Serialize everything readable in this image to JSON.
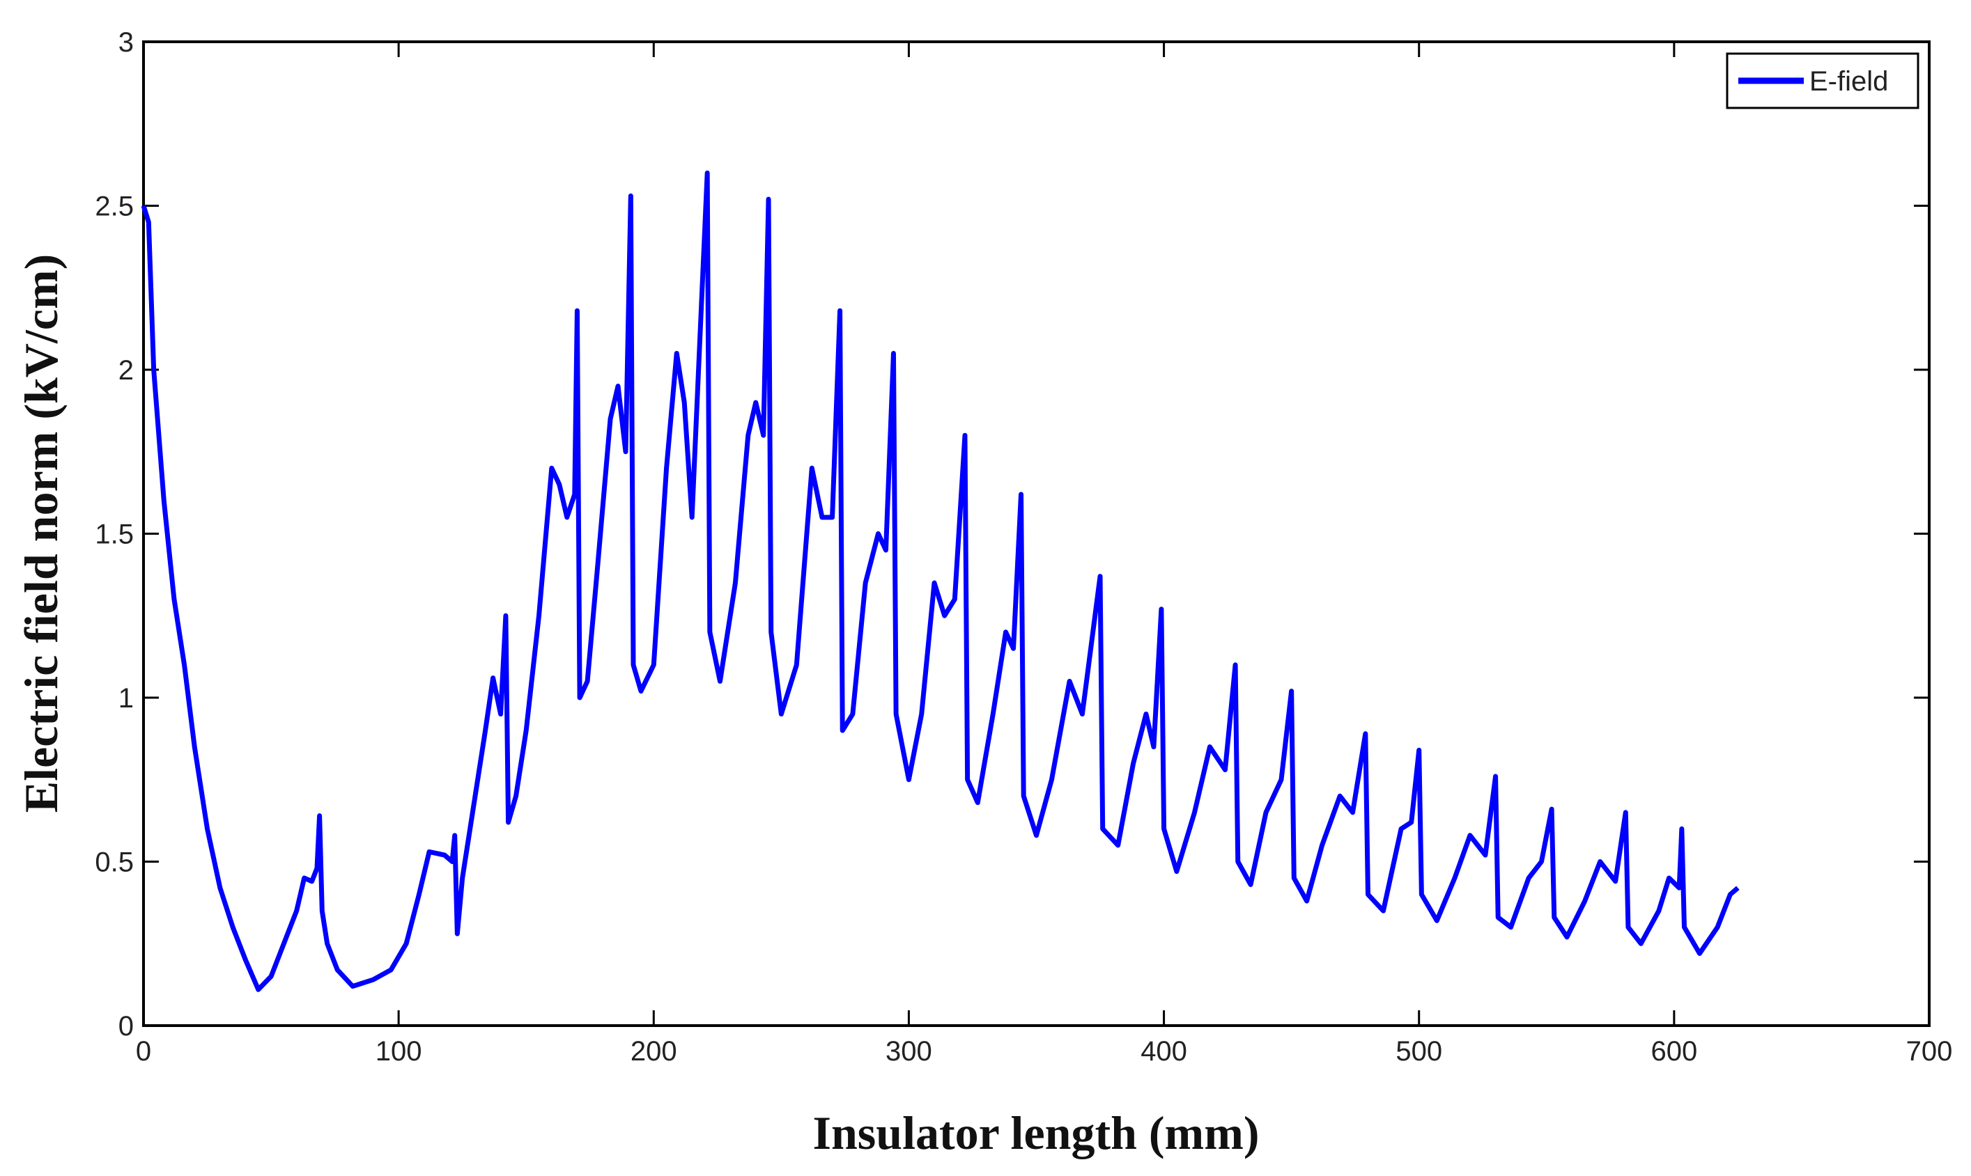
{
  "chart_data": {
    "type": "line",
    "xlabel": "Insulator length (mm)",
    "ylabel": "Electric field norm (kV/cm)",
    "x": [
      0,
      2,
      4,
      6,
      8,
      12,
      16,
      20,
      25,
      30,
      35,
      40,
      45,
      50,
      55,
      60,
      63,
      66,
      68,
      69,
      70,
      72,
      76,
      82,
      90,
      97,
      103,
      108,
      112,
      118,
      121,
      122,
      123,
      125,
      130,
      134,
      137,
      140,
      142,
      143,
      146,
      150,
      155,
      160,
      163,
      166,
      169,
      170,
      171,
      174,
      178,
      183,
      186,
      189,
      191,
      192,
      195,
      200,
      205,
      209,
      212,
      215,
      221,
      222,
      226,
      232,
      237,
      240,
      243,
      245,
      246,
      250,
      256,
      262,
      266,
      270,
      273,
      274,
      278,
      283,
      288,
      291,
      294,
      295,
      300,
      305,
      310,
      314,
      318,
      322,
      323,
      327,
      333,
      338,
      341,
      344,
      345,
      350,
      356,
      363,
      368,
      375,
      376,
      382,
      388,
      393,
      396,
      399,
      400,
      405,
      412,
      418,
      424,
      428,
      429,
      434,
      440,
      446,
      450,
      451,
      456,
      462,
      469,
      474,
      479,
      480,
      486,
      493,
      497,
      500,
      501,
      507,
      514,
      520,
      526,
      530,
      531,
      536,
      543,
      548,
      552,
      553,
      558,
      565,
      571,
      577,
      581,
      582,
      587,
      594,
      598,
      602,
      603,
      604,
      610,
      617,
      622,
      625
    ],
    "series": [
      {
        "name": "E-field",
        "color": "#0000ff",
        "values": [
          2.5,
          2.45,
          2.0,
          1.8,
          1.6,
          1.3,
          1.1,
          0.85,
          0.6,
          0.42,
          0.3,
          0.2,
          0.11,
          0.15,
          0.25,
          0.35,
          0.45,
          0.44,
          0.48,
          0.64,
          0.35,
          0.25,
          0.17,
          0.12,
          0.14,
          0.17,
          0.25,
          0.4,
          0.53,
          0.52,
          0.5,
          0.58,
          0.28,
          0.45,
          0.7,
          0.9,
          1.06,
          0.95,
          1.25,
          0.62,
          0.7,
          0.9,
          1.25,
          1.7,
          1.65,
          1.55,
          1.62,
          2.18,
          1.0,
          1.05,
          1.4,
          1.85,
          1.95,
          1.75,
          2.53,
          1.1,
          1.02,
          1.1,
          1.7,
          2.05,
          1.9,
          1.55,
          2.6,
          1.2,
          1.05,
          1.35,
          1.8,
          1.9,
          1.8,
          2.52,
          1.2,
          0.95,
          1.1,
          1.7,
          1.55,
          1.55,
          2.18,
          0.9,
          0.95,
          1.35,
          1.5,
          1.45,
          2.05,
          0.95,
          0.75,
          0.95,
          1.35,
          1.25,
          1.3,
          1.8,
          0.75,
          0.68,
          0.95,
          1.2,
          1.15,
          1.62,
          0.7,
          0.58,
          0.75,
          1.05,
          0.95,
          1.37,
          0.6,
          0.55,
          0.8,
          0.95,
          0.85,
          1.27,
          0.6,
          0.47,
          0.65,
          0.85,
          0.78,
          1.1,
          0.5,
          0.43,
          0.65,
          0.75,
          1.02,
          0.45,
          0.38,
          0.55,
          0.7,
          0.65,
          0.89,
          0.4,
          0.35,
          0.6,
          0.62,
          0.84,
          0.4,
          0.32,
          0.45,
          0.58,
          0.52,
          0.76,
          0.33,
          0.3,
          0.45,
          0.5,
          0.66,
          0.33,
          0.27,
          0.38,
          0.5,
          0.44,
          0.65,
          0.3,
          0.25,
          0.35,
          0.45,
          0.42,
          0.6,
          0.3,
          0.22,
          0.3,
          0.4,
          0.42
        ]
      }
    ],
    "xlim": [
      0,
      700
    ],
    "xticks": [
      0,
      100,
      200,
      300,
      400,
      500,
      600,
      700
    ],
    "ylim": [
      0,
      3
    ],
    "yticks": [
      0,
      0.5,
      1,
      1.5,
      2,
      2.5,
      3
    ],
    "grid": false,
    "legend": "upper right"
  }
}
